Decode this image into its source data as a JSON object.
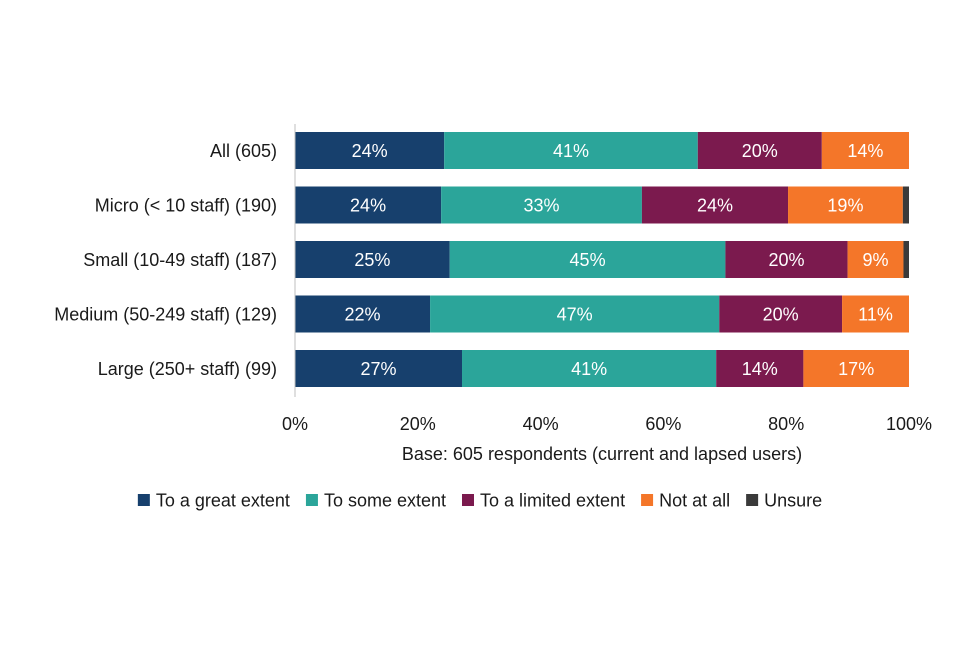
{
  "chart_data": {
    "type": "bar",
    "orientation": "horizontal",
    "stacked": true,
    "title": "",
    "xlabel": "Base: 605 respondents (current and lapsed users)",
    "ylabel": "",
    "xlim": [
      0,
      100
    ],
    "x_ticks": [
      0,
      20,
      40,
      60,
      80,
      100
    ],
    "x_tick_labels": [
      "0%",
      "20%",
      "40%",
      "60%",
      "80%",
      "100%"
    ],
    "grid": false,
    "legend_position": "bottom",
    "categories": [
      "All (605)",
      "Micro (< 10 staff) (190)",
      "Small (10-49 staff) (187)",
      "Medium (50-249 staff) (129)",
      "Large (250+ staff) (99)"
    ],
    "series": [
      {
        "name": "To a great extent",
        "color": "#17406D",
        "values": [
          24.3,
          23.8,
          25.2,
          22.0,
          27.2
        ],
        "labels": [
          "24%",
          "24%",
          "25%",
          "22%",
          "27%"
        ]
      },
      {
        "name": "To some extent",
        "color": "#2BA59A",
        "values": [
          41.3,
          32.7,
          44.9,
          47.1,
          41.4
        ],
        "labels": [
          "41%",
          "33%",
          "45%",
          "47%",
          "41%"
        ]
      },
      {
        "name": "To a limited extent",
        "color": "#7B1A4E",
        "values": [
          20.2,
          23.8,
          19.9,
          20.0,
          14.2
        ],
        "labels": [
          "20%",
          "24%",
          "20%",
          "20%",
          "14%"
        ]
      },
      {
        "name": "Not at all",
        "color": "#F47629",
        "values": [
          14.2,
          18.7,
          9.1,
          10.9,
          17.2
        ],
        "labels": [
          "14%",
          "19%",
          "9%",
          "11%",
          "17%"
        ]
      },
      {
        "name": "Unsure",
        "color": "#3A3A3A",
        "values": [
          0,
          1.0,
          0.9,
          0,
          0
        ],
        "labels": [
          "",
          "",
          "",
          "",
          ""
        ]
      }
    ]
  }
}
